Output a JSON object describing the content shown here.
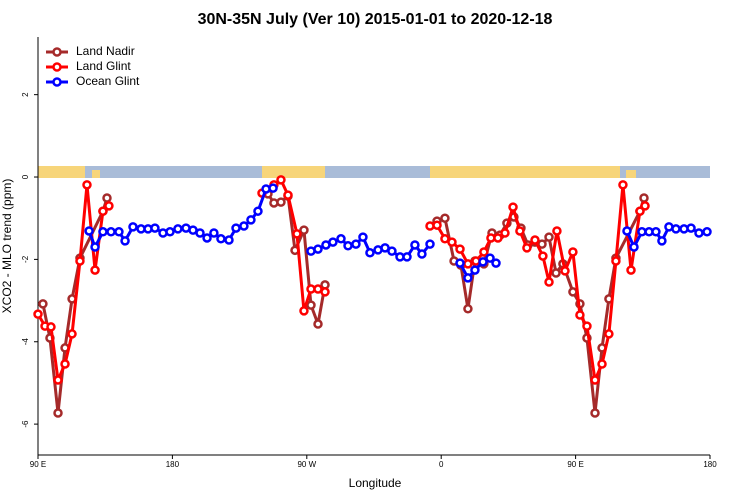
{
  "chart_data": {
    "type": "line",
    "title": "30N-35N July (Ver 10)   2015-01-01 to 2020-12-18",
    "x_label": "Longitude",
    "y_label": "XCO2 - MLO trend (ppm)",
    "xlim": [
      90,
      540
    ],
    "xticks": [
      {
        "value": 90,
        "label": "90 E"
      },
      180,
      {
        "value": 270,
        "label": "90 W"
      },
      {
        "value": 360,
        "label": "0"
      },
      {
        "value": 450,
        "label": "90 E"
      },
      {
        "value": 540,
        "label": "180"
      }
    ],
    "ylim": [
      -6.75,
      3.4
    ],
    "yticks": [
      -6,
      -4,
      -2,
      0,
      2
    ],
    "legend": "top-left",
    "series": [
      {
        "name": "Land Nadir",
        "color": "#a52a2a",
        "x": [
          93.3,
          98,
          103.4,
          108.1,
          112.8,
          118.1,
          133.5,
          136.2,
          null,
          244,
          248,
          252.7,
          257.4,
          262.1,
          268.1,
          272.8,
          277.5,
          282.2,
          null,
          357.2,
          362.5,
          368.6,
          373.2,
          377.9,
          382.6,
          388.6,
          394,
          399.4,
          404,
          408.7,
          413.4,
          418.1,
          422.8,
          427.5,
          432.2,
          436.9,
          441.5,
          448.2,
          452.9,
          457.6,
          463,
          467.7,
          472.3,
          477,
          493.1,
          495.8
        ],
        "values": [
          -3.08,
          -3.91,
          -5.73,
          -4.15,
          -2.96,
          -1.97,
          -0.83,
          -0.51,
          null,
          -0.41,
          -0.63,
          -0.61,
          -0.46,
          -1.78,
          -1.29,
          -3.11,
          -3.57,
          -2.62,
          null,
          -1.07,
          -1.0,
          -2.04,
          -2.14,
          -3.2,
          -2.04,
          -2.11,
          -1.36,
          -1.41,
          -1.12,
          -0.97,
          -1.24,
          -1.65,
          -1.58,
          -1.63,
          -1.46,
          -2.33,
          -2.11,
          -2.79,
          -3.08,
          -3.91,
          -5.73,
          -4.15,
          -2.96,
          -1.97,
          -0.83,
          -0.51
        ]
      },
      {
        "name": "Land Glint",
        "color": "#ff0000",
        "x": [
          90,
          94.7,
          98.7,
          103.4,
          108.1,
          112.8,
          118.1,
          122.8,
          128.2,
          133.5,
          137.5,
          null,
          240,
          248,
          252.7,
          257.4,
          263.4,
          268.1,
          272.8,
          277.5,
          282.2,
          null,
          352.5,
          357.2,
          362.5,
          367.2,
          372.6,
          377.9,
          383.3,
          388.6,
          393.3,
          398,
          402.7,
          408.1,
          412.7,
          417.4,
          422.8,
          428.1,
          432.2,
          437.5,
          442.9,
          448.2,
          452.9,
          457.6,
          463,
          467.7,
          472.3,
          477,
          481.7,
          487.1,
          493.1,
          496.5
        ],
        "values": [
          -3.33,
          -3.62,
          -3.64,
          -4.93,
          -4.54,
          -3.81,
          -2.04,
          -0.19,
          -2.26,
          -0.83,
          -0.7,
          null,
          -0.39,
          -0.19,
          -0.07,
          -0.44,
          -1.38,
          -3.25,
          -2.72,
          -2.72,
          -2.79,
          null,
          -1.19,
          -1.17,
          -1.5,
          -1.58,
          -1.75,
          -2.11,
          -2.04,
          -1.82,
          -1.48,
          -1.48,
          -1.36,
          -0.73,
          -1.31,
          -1.72,
          -1.53,
          -1.92,
          -2.55,
          -1.31,
          -2.28,
          -1.82,
          -3.35,
          -3.62,
          -4.93,
          -4.54,
          -3.81,
          -2.04,
          -0.19,
          -2.26,
          -0.83,
          -0.7
        ]
      },
      {
        "name": "Ocean Glint",
        "color": "#0000ff",
        "x": [
          124.2,
          128.2,
          133.5,
          138.9,
          144.2,
          148.3,
          153.6,
          159,
          163.7,
          168.3,
          173.7,
          178.4,
          183.7,
          189.1,
          193.8,
          198.5,
          203.2,
          207.8,
          212.5,
          217.9,
          222.6,
          227.9,
          232.6,
          237.3,
          242.7,
          247.4,
          null,
          272.8,
          277.5,
          282.8,
          287.5,
          292.9,
          297.6,
          302.9,
          307.6,
          312.3,
          317.7,
          322.4,
          327,
          332.4,
          337.1,
          342.4,
          347.1,
          352.5,
          null,
          372.6,
          377.9,
          382.6,
          388,
          392.7,
          396.7,
          null,
          484.4,
          489.1,
          494.4,
          499.2,
          503.8,
          507.8,
          512.5,
          517.2,
          522.6,
          527.3,
          532.6,
          538
        ],
        "values": [
          -1.31,
          -1.7,
          -1.33,
          -1.33,
          -1.33,
          -1.55,
          -1.21,
          -1.26,
          -1.26,
          -1.24,
          -1.36,
          -1.33,
          -1.26,
          -1.24,
          -1.29,
          -1.36,
          -1.48,
          -1.36,
          -1.5,
          -1.53,
          -1.24,
          -1.19,
          -1.04,
          -0.83,
          -0.29,
          -0.27,
          null,
          -1.8,
          -1.75,
          -1.65,
          -1.58,
          -1.5,
          -1.67,
          -1.63,
          -1.46,
          -1.84,
          -1.77,
          -1.72,
          -1.8,
          -1.94,
          -1.94,
          -1.65,
          -1.87,
          -1.63,
          null,
          -2.09,
          -2.45,
          -2.26,
          -2.06,
          -1.97,
          -2.09,
          null,
          -1.31,
          -1.7,
          -1.33,
          -1.33,
          -1.33,
          -1.55,
          -1.21,
          -1.26,
          -1.26,
          -1.24,
          -1.36,
          -1.33
        ]
      }
    ]
  }
}
